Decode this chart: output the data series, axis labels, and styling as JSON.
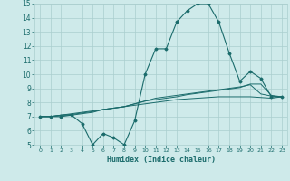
{
  "xlabel": "Humidex (Indice chaleur)",
  "x_values": [
    0,
    1,
    2,
    3,
    4,
    5,
    6,
    7,
    8,
    9,
    10,
    11,
    12,
    13,
    14,
    15,
    16,
    17,
    18,
    19,
    20,
    21,
    22,
    23
  ],
  "main_line": [
    7.0,
    7.0,
    7.0,
    7.1,
    6.5,
    5.0,
    5.8,
    5.5,
    5.0,
    6.7,
    10.0,
    11.8,
    11.8,
    13.7,
    14.5,
    15.0,
    15.0,
    13.7,
    11.5,
    9.5,
    10.2,
    9.7,
    8.4,
    8.4
  ],
  "line2": [
    7.0,
    7.0,
    7.1,
    7.1,
    7.2,
    7.3,
    7.5,
    7.6,
    7.7,
    7.9,
    8.1,
    8.2,
    8.3,
    8.4,
    8.55,
    8.65,
    8.75,
    8.85,
    8.95,
    9.05,
    9.3,
    9.3,
    8.5,
    8.4
  ],
  "line3": [
    7.0,
    7.0,
    7.1,
    7.15,
    7.25,
    7.35,
    7.5,
    7.6,
    7.7,
    7.9,
    8.1,
    8.3,
    8.4,
    8.5,
    8.6,
    8.7,
    8.8,
    8.9,
    9.0,
    9.1,
    9.25,
    8.6,
    8.45,
    8.4
  ],
  "line4": [
    7.0,
    7.0,
    7.1,
    7.2,
    7.3,
    7.4,
    7.5,
    7.6,
    7.7,
    7.8,
    7.9,
    8.0,
    8.1,
    8.2,
    8.25,
    8.3,
    8.35,
    8.4,
    8.4,
    8.4,
    8.4,
    8.35,
    8.3,
    8.4
  ],
  "line_color": "#1a6b6b",
  "bg_color": "#ceeaea",
  "grid_color": "#aacece",
  "ylim": [
    5,
    15
  ],
  "xlim": [
    -0.5,
    23.5
  ]
}
